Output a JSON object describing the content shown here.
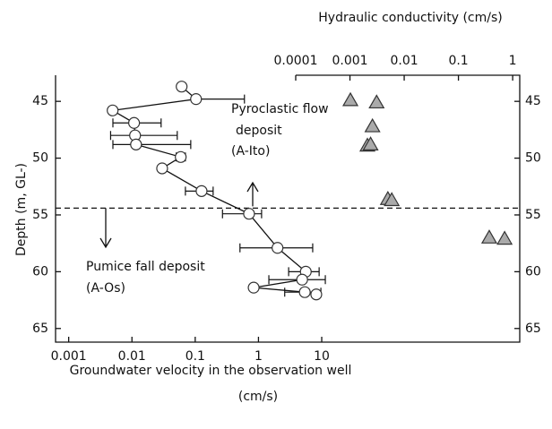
{
  "chart_data": {
    "type": "scatter",
    "x_label": [
      "Groundwater velocity in the observation well",
      "(cm/s)"
    ],
    "x2_label": "Hydraulic conductivity (cm/s)",
    "y_label": "Depth (m, GL-)",
    "xscale": "log",
    "x2scale": "log",
    "xlim": [
      0.00062,
      13500
    ],
    "xticks": [
      0.001,
      0.01,
      0.1,
      1,
      10
    ],
    "x2lim": [
      0.0001,
      1.35
    ],
    "x2ticks": [
      0.0001,
      0.001,
      0.01,
      0.1,
      1
    ],
    "ylim": [
      42.7,
      66.2
    ],
    "yticks": [
      45,
      50,
      55,
      60,
      65
    ],
    "y_inverted": true,
    "boundary_depth": 54.4,
    "series": [
      {
        "marker": "circle",
        "color": "#ffffff",
        "line": true,
        "x": [
          0.061,
          0.103,
          0.00495,
          0.0108,
          0.0112,
          0.0116,
          0.059,
          0.03,
          0.126,
          0.71,
          2.0,
          5.6,
          4.9,
          0.84,
          5.4,
          8.2
        ],
        "y": [
          43.7,
          44.8,
          45.8,
          46.9,
          48.0,
          48.8,
          49.9,
          50.9,
          52.9,
          54.9,
          57.9,
          60.0,
          60.7,
          61.4,
          61.8,
          62.0
        ],
        "x_err_low": [
          null,
          0.103,
          null,
          0.005,
          0.0046,
          0.005,
          0.05,
          null,
          0.07,
          0.27,
          0.51,
          3.0,
          1.46,
          null,
          2.6,
          null
        ],
        "x_err_high": [
          null,
          0.6,
          null,
          0.0289,
          0.052,
          0.085,
          0.07,
          null,
          0.192,
          1.12,
          7.2,
          9.1,
          11.4,
          null,
          9.7,
          null
        ]
      },
      {
        "marker": "triangle",
        "axis": "x2",
        "color": "#aaaaaa",
        "x": [
          0.00102,
          0.0031,
          0.0026,
          0.0021,
          0.0024,
          0.005,
          0.0059,
          0.37,
          0.71
        ],
        "y": [
          44.9,
          45.1,
          47.2,
          48.9,
          48.8,
          53.6,
          53.7,
          57.0,
          57.1
        ]
      }
    ],
    "annotations": [
      {
        "lines": [
          "Pyroclastic flow",
          "deposit",
          "(A-Ito)"
        ],
        "arrow": "up"
      },
      {
        "lines": [
          "Pumice fall deposit",
          "(A-Os)"
        ],
        "arrow": "down"
      }
    ]
  }
}
